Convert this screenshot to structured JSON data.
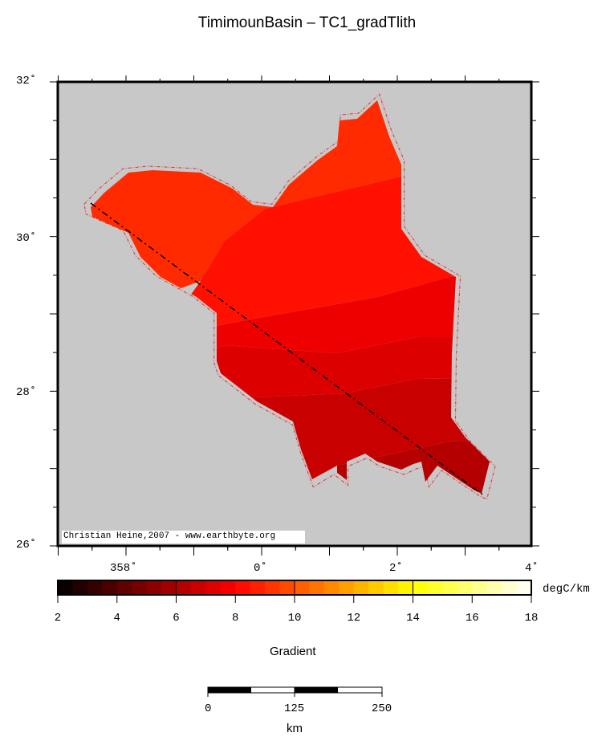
{
  "title": "TimimounBasin – TC1_gradTlith",
  "credit": "Christian Heine,2007 - www.earthbyte.org",
  "map": {
    "lon_range": [
      357,
      361
    ],
    "lat_range": [
      26,
      32
    ],
    "lon_labels": [
      {
        "lon": 358,
        "text": "358˚"
      },
      {
        "lon": 360,
        "text": "0˚"
      },
      {
        "lon": 362,
        "text": "2˚"
      },
      {
        "lon": 364,
        "text": "4˚"
      }
    ],
    "lat_labels": [
      {
        "lat": 32,
        "text": "32˚"
      },
      {
        "lat": 30,
        "text": "30˚"
      },
      {
        "lat": 28,
        "text": "28˚"
      },
      {
        "lat": 26,
        "text": "26˚"
      }
    ],
    "background_color": "#c8c8c8",
    "outline_color": "#e03030",
    "profile_line": "dash-dot"
  },
  "colorbar": {
    "min": 2,
    "max": 18,
    "step": 0.5,
    "tick_labels": [
      "2",
      "4",
      "6",
      "8",
      "10",
      "12",
      "14",
      "16",
      "18"
    ],
    "unit": "degC/km",
    "label": "Gradient",
    "palette": "hot"
  },
  "scalebar": {
    "labels": [
      "0",
      "125",
      "250"
    ],
    "unit": "km"
  }
}
